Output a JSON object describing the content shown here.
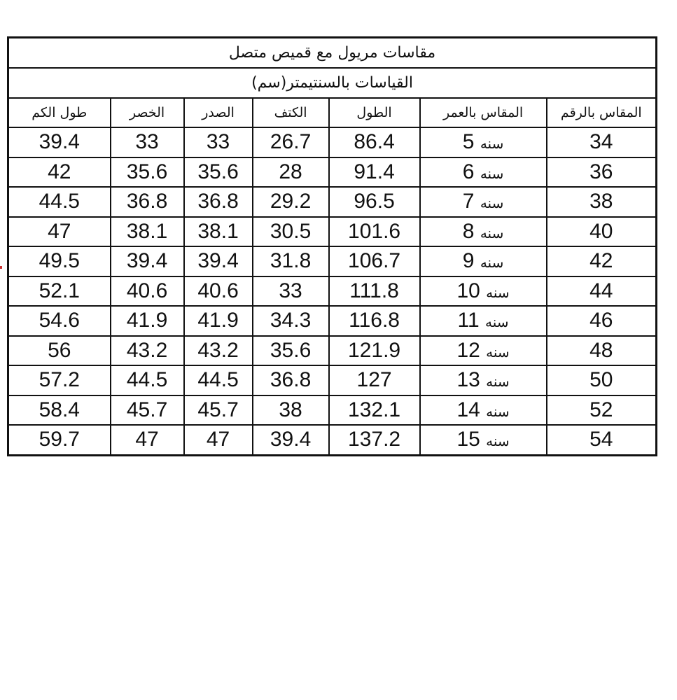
{
  "title": "مقاسات مريول مع قميص متصل",
  "subtitle": "القياسات بالسنتيمتر(سم)",
  "columns": [
    "المقاس بالرقم",
    "المقاس بالعمر",
    "الطول",
    "الكتف",
    "الصدر",
    "الخصر",
    "طول الكم"
  ],
  "age_word": "سنه",
  "rows": [
    [
      "34",
      "5",
      "86.4",
      "26.7",
      "33",
      "33",
      "39.4"
    ],
    [
      "36",
      "6",
      "91.4",
      "28",
      "35.6",
      "35.6",
      "42"
    ],
    [
      "38",
      "7",
      "96.5",
      "29.2",
      "36.8",
      "36.8",
      "44.5"
    ],
    [
      "40",
      "8",
      "101.6",
      "30.5",
      "38.1",
      "38.1",
      "47"
    ],
    [
      "42",
      "9",
      "106.7",
      "31.8",
      "39.4",
      "39.4",
      "49.5"
    ],
    [
      "44",
      "10",
      "111.8",
      "33",
      "40.6",
      "40.6",
      "52.1"
    ],
    [
      "46",
      "11",
      "116.8",
      "34.3",
      "41.9",
      "41.9",
      "54.6"
    ],
    [
      "48",
      "12",
      "121.9",
      "35.6",
      "43.2",
      "43.2",
      "56"
    ],
    [
      "50",
      "13",
      "127",
      "36.8",
      "44.5",
      "44.5",
      "57.2"
    ],
    [
      "52",
      "14",
      "132.1",
      "38",
      "45.7",
      "45.7",
      "58.4"
    ],
    [
      "54",
      "15",
      "137.2",
      "39.4",
      "47",
      "47",
      "59.7"
    ]
  ]
}
